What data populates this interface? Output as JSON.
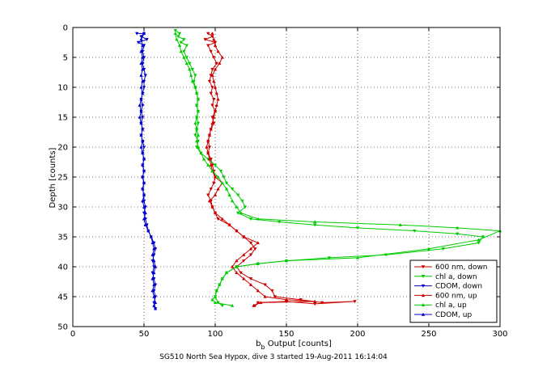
{
  "chart_data": {
    "type": "line",
    "xlabel_main": "b",
    "xlabel_sub": "b",
    "xlabel_rest": " Output [counts]",
    "ylabel": "Depth [counts]",
    "caption": "SG510 North Sea Hypox, dive 3 started 19-Aug-2011 16:14:04",
    "xlim": [
      0,
      300
    ],
    "ylim": [
      0,
      50
    ],
    "y_reversed": true,
    "grid": true,
    "legend_position": "bottom-right",
    "x_ticks": [
      0,
      50,
      100,
      150,
      200,
      250,
      300
    ],
    "y_ticks": [
      0,
      5,
      10,
      15,
      20,
      25,
      30,
      35,
      40,
      45,
      50
    ],
    "series": [
      {
        "name": "600 nm, down",
        "color": "#cc0000",
        "marker": "triangle-down",
        "points": [
          [
            95,
            1
          ],
          [
            98,
            1.5
          ],
          [
            93,
            2
          ],
          [
            100,
            2.5
          ],
          [
            95,
            3
          ],
          [
            97,
            4
          ],
          [
            99,
            5
          ],
          [
            101,
            6
          ],
          [
            98,
            7
          ],
          [
            97,
            8
          ],
          [
            96,
            9
          ],
          [
            98,
            10
          ],
          [
            97,
            11
          ],
          [
            99,
            12
          ],
          [
            98,
            13
          ],
          [
            100,
            14
          ],
          [
            98,
            15
          ],
          [
            99,
            16
          ],
          [
            97,
            17
          ],
          [
            96,
            18
          ],
          [
            95,
            19
          ],
          [
            96,
            20
          ],
          [
            95,
            21
          ],
          [
            97,
            22
          ],
          [
            98,
            23
          ],
          [
            99,
            24
          ],
          [
            100,
            25
          ],
          [
            99,
            26
          ],
          [
            97,
            27
          ],
          [
            95,
            28
          ],
          [
            97,
            29
          ],
          [
            98,
            30
          ],
          [
            100,
            31
          ],
          [
            102,
            32
          ],
          [
            110,
            33
          ],
          [
            115,
            34
          ],
          [
            120,
            35
          ],
          [
            125,
            36
          ],
          [
            128,
            37
          ],
          [
            125,
            38
          ],
          [
            120,
            39
          ],
          [
            115,
            40
          ],
          [
            118,
            41
          ],
          [
            125,
            42
          ],
          [
            135,
            43
          ],
          [
            140,
            44
          ],
          [
            142,
            45
          ],
          [
            160,
            45.5
          ],
          [
            175,
            46
          ],
          [
            198,
            45.8
          ],
          [
            170,
            46.2
          ],
          [
            150,
            45.8
          ],
          [
            130,
            46
          ],
          [
            128,
            46.5
          ]
        ]
      },
      {
        "name": "chl a, down",
        "color": "#00cc00",
        "marker": "triangle-down",
        "points": [
          [
            72,
            0.5
          ],
          [
            75,
            1
          ],
          [
            74,
            1.5
          ],
          [
            78,
            2
          ],
          [
            76,
            2.5
          ],
          [
            80,
            3
          ],
          [
            78,
            4
          ],
          [
            80,
            5
          ],
          [
            82,
            6
          ],
          [
            84,
            7
          ],
          [
            86,
            8
          ],
          [
            85,
            9
          ],
          [
            86,
            10
          ],
          [
            87,
            11
          ],
          [
            88,
            12
          ],
          [
            87,
            13
          ],
          [
            88,
            14
          ],
          [
            87,
            15
          ],
          [
            88,
            16
          ],
          [
            87,
            17
          ],
          [
            86,
            18
          ],
          [
            88,
            19
          ],
          [
            87,
            20
          ],
          [
            90,
            21
          ],
          [
            95,
            22
          ],
          [
            100,
            23
          ],
          [
            104,
            24
          ],
          [
            106,
            25
          ],
          [
            108,
            26
          ],
          [
            112,
            27
          ],
          [
            116,
            28
          ],
          [
            119,
            29
          ],
          [
            121,
            30
          ],
          [
            116,
            31
          ],
          [
            125,
            32
          ],
          [
            145,
            32.5
          ],
          [
            170,
            33
          ],
          [
            200,
            33.5
          ],
          [
            240,
            34
          ],
          [
            270,
            34.5
          ],
          [
            288,
            35
          ],
          [
            285,
            36
          ],
          [
            260,
            37
          ],
          [
            220,
            38
          ],
          [
            180,
            38.5
          ],
          [
            150,
            39
          ],
          [
            130,
            39.5
          ],
          [
            115,
            40
          ],
          [
            108,
            41
          ],
          [
            105,
            42
          ],
          [
            103,
            43
          ],
          [
            101,
            44
          ],
          [
            100,
            45
          ],
          [
            102,
            46
          ],
          [
            105,
            46.5
          ]
        ]
      },
      {
        "name": "CDOM, down",
        "color": "#0000cc",
        "marker": "triangle-down",
        "points": [
          [
            45,
            1
          ],
          [
            50,
            1
          ],
          [
            48,
            1.5
          ],
          [
            52,
            2
          ],
          [
            46,
            2.5
          ],
          [
            50,
            3
          ],
          [
            49,
            4
          ],
          [
            50,
            5
          ],
          [
            49,
            6
          ],
          [
            50,
            7
          ],
          [
            51,
            8
          ],
          [
            50,
            9
          ],
          [
            50,
            10
          ],
          [
            49,
            11
          ],
          [
            48,
            12
          ],
          [
            49,
            13
          ],
          [
            48,
            14
          ],
          [
            49,
            15
          ],
          [
            48,
            16
          ],
          [
            49,
            17
          ],
          [
            48,
            18
          ],
          [
            49,
            19
          ],
          [
            50,
            20
          ],
          [
            49,
            21
          ],
          [
            50,
            22
          ],
          [
            49,
            23
          ],
          [
            50,
            24
          ],
          [
            49,
            25
          ],
          [
            50,
            26
          ],
          [
            49,
            27
          ],
          [
            50,
            28
          ],
          [
            50,
            29
          ],
          [
            51,
            30
          ],
          [
            50,
            31
          ],
          [
            51,
            32
          ],
          [
            52,
            33
          ],
          [
            53,
            34
          ],
          [
            55,
            35
          ],
          [
            57,
            36
          ],
          [
            58,
            37
          ],
          [
            57,
            38
          ],
          [
            56,
            39
          ],
          [
            57,
            40
          ],
          [
            56,
            41
          ],
          [
            57,
            42
          ],
          [
            58,
            43
          ],
          [
            57,
            44
          ],
          [
            58,
            45
          ],
          [
            57,
            46
          ],
          [
            58,
            47
          ]
        ]
      },
      {
        "name": "600 nm, up",
        "color": "#cc0000",
        "marker": "triangle-up",
        "points": [
          [
            127,
            46.5
          ],
          [
            132,
            46
          ],
          [
            170,
            45.8
          ],
          [
            150,
            45.5
          ],
          [
            135,
            45
          ],
          [
            130,
            44
          ],
          [
            125,
            43
          ],
          [
            120,
            42
          ],
          [
            115,
            41
          ],
          [
            112,
            40
          ],
          [
            115,
            39
          ],
          [
            120,
            38
          ],
          [
            125,
            37
          ],
          [
            130,
            36
          ],
          [
            120,
            35
          ],
          [
            115,
            34
          ],
          [
            110,
            33
          ],
          [
            105,
            32
          ],
          [
            100,
            31
          ],
          [
            98,
            30
          ],
          [
            96,
            29
          ],
          [
            100,
            28
          ],
          [
            102,
            27
          ],
          [
            105,
            26
          ],
          [
            100,
            25
          ],
          [
            98,
            24
          ],
          [
            97,
            23
          ],
          [
            96,
            22
          ],
          [
            95,
            21
          ],
          [
            94,
            20
          ],
          [
            95,
            19
          ],
          [
            96,
            18
          ],
          [
            97,
            17
          ],
          [
            98,
            16
          ],
          [
            99,
            15
          ],
          [
            100,
            14
          ],
          [
            101,
            13
          ],
          [
            102,
            12
          ],
          [
            101,
            11
          ],
          [
            100,
            10
          ],
          [
            99,
            9
          ],
          [
            98,
            8
          ],
          [
            100,
            7
          ],
          [
            103,
            6
          ],
          [
            105,
            5
          ],
          [
            102,
            4
          ],
          [
            100,
            3
          ],
          [
            99,
            2
          ],
          [
            98,
            1
          ]
        ]
      },
      {
        "name": "chl a, up",
        "color": "#00cc00",
        "marker": "triangle-up",
        "points": [
          [
            112,
            46.5
          ],
          [
            100,
            46
          ],
          [
            98,
            45.5
          ],
          [
            100,
            45
          ],
          [
            101,
            44
          ],
          [
            103,
            43
          ],
          [
            105,
            42
          ],
          [
            108,
            41
          ],
          [
            115,
            40
          ],
          [
            130,
            39.5
          ],
          [
            150,
            39
          ],
          [
            200,
            38.5
          ],
          [
            250,
            37
          ],
          [
            285,
            35.5
          ],
          [
            300,
            34
          ],
          [
            270,
            33.5
          ],
          [
            230,
            33
          ],
          [
            170,
            32.5
          ],
          [
            130,
            32
          ],
          [
            118,
            31
          ],
          [
            115,
            30
          ],
          [
            112,
            29
          ],
          [
            110,
            28
          ],
          [
            108,
            27
          ],
          [
            105,
            26
          ],
          [
            102,
            25
          ],
          [
            98,
            24
          ],
          [
            95,
            23
          ],
          [
            92,
            22
          ],
          [
            90,
            21
          ],
          [
            88,
            20
          ],
          [
            87,
            19
          ],
          [
            88,
            18
          ],
          [
            87,
            17
          ],
          [
            86,
            16
          ],
          [
            87,
            15
          ],
          [
            88,
            14
          ],
          [
            87,
            13
          ],
          [
            88,
            12
          ],
          [
            87,
            11
          ],
          [
            86,
            10
          ],
          [
            84,
            9
          ],
          [
            83,
            8
          ],
          [
            82,
            7
          ],
          [
            80,
            6
          ],
          [
            78,
            5
          ],
          [
            76,
            4
          ],
          [
            75,
            3
          ],
          [
            73,
            2
          ],
          [
            72,
            1
          ]
        ]
      },
      {
        "name": "CDOM, up",
        "color": "#0000cc",
        "marker": "triangle-up",
        "points": [
          [
            58,
            47
          ],
          [
            57,
            46.5
          ],
          [
            58,
            46
          ],
          [
            57,
            45
          ],
          [
            56,
            44
          ],
          [
            57,
            43
          ],
          [
            56,
            42
          ],
          [
            57,
            41
          ],
          [
            58,
            40
          ],
          [
            57,
            39
          ],
          [
            56,
            38
          ],
          [
            57,
            37
          ],
          [
            56,
            36
          ],
          [
            55,
            35
          ],
          [
            53,
            34
          ],
          [
            51,
            33
          ],
          [
            50,
            32
          ],
          [
            51,
            31
          ],
          [
            50,
            30
          ],
          [
            49,
            29
          ],
          [
            50,
            28
          ],
          [
            49,
            27
          ],
          [
            50,
            26
          ],
          [
            49,
            25
          ],
          [
            50,
            24
          ],
          [
            49,
            23
          ],
          [
            50,
            22
          ],
          [
            49,
            21
          ],
          [
            48,
            20
          ],
          [
            49,
            19
          ],
          [
            48,
            18
          ],
          [
            49,
            17
          ],
          [
            48,
            16
          ],
          [
            47,
            15
          ],
          [
            48,
            14
          ],
          [
            47,
            13
          ],
          [
            48,
            12
          ],
          [
            49,
            11
          ],
          [
            48,
            10
          ],
          [
            49,
            9
          ],
          [
            48,
            8
          ],
          [
            49,
            7
          ],
          [
            48,
            6
          ],
          [
            49,
            5
          ],
          [
            48,
            4
          ],
          [
            49,
            3
          ],
          [
            48,
            2
          ],
          [
            50,
            1
          ]
        ]
      }
    ]
  }
}
